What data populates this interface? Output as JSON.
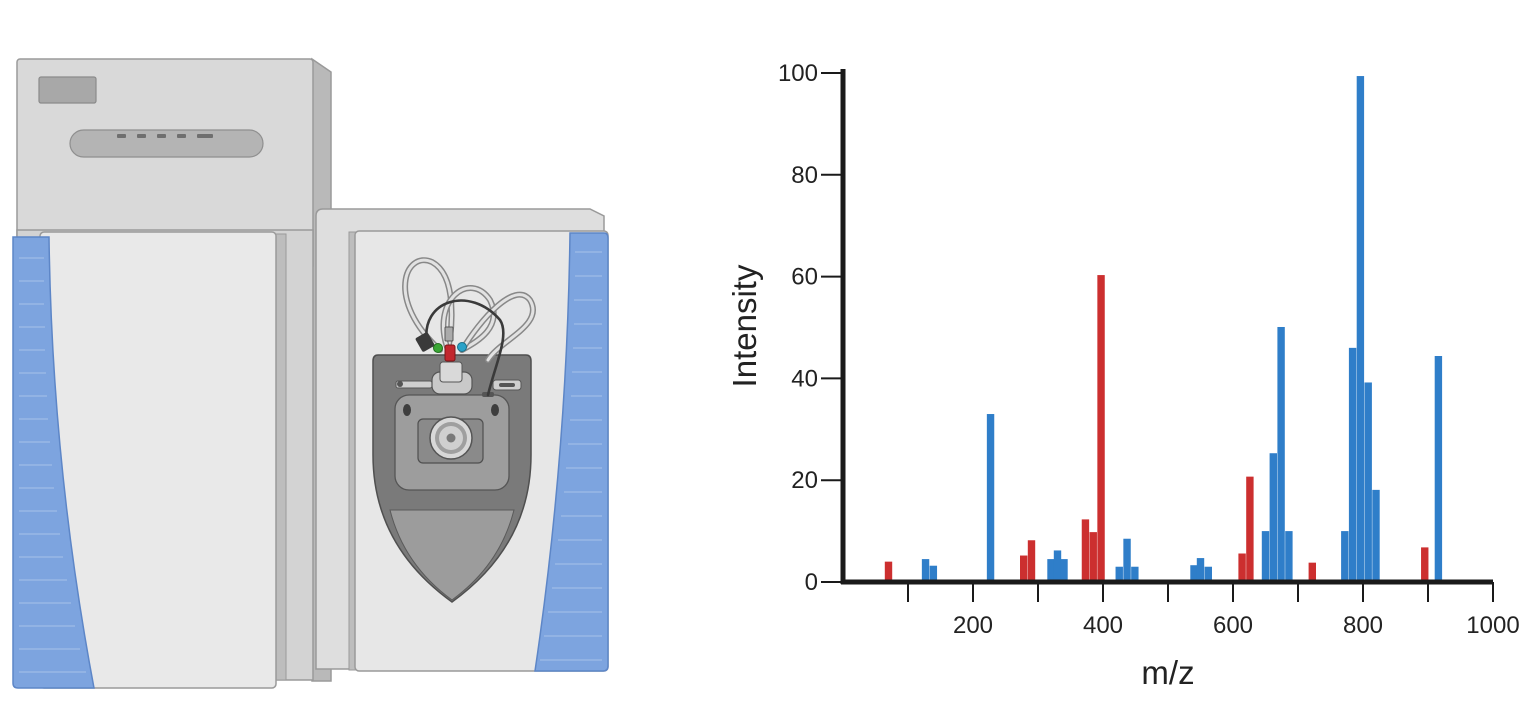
{
  "colors": {
    "blue": "#2f7ec9",
    "red": "#cc2f2f",
    "panel_blue": "#7da4df",
    "body_light": "#dcdcdc",
    "screen_gray": "#7a7a7a",
    "ring_red": "#c2272d",
    "ring_green": "#3aa635",
    "ring_cyan": "#2aa2c8"
  },
  "illustration": {
    "name": "mass-spectrometer-instrument",
    "icon": "mass-spectrometer-icon"
  },
  "chart_data": {
    "type": "bar",
    "xlabel": "m/z",
    "ylabel": "Intensity",
    "xlim": [
      0,
      1000
    ],
    "ylim": [
      0,
      100
    ],
    "x_ticks": [
      100,
      200,
      300,
      400,
      500,
      600,
      700,
      800,
      900,
      1000
    ],
    "x_tick_labels": [
      "200",
      "400",
      "600",
      "800",
      "1000"
    ],
    "x_tick_label_values": [
      200,
      400,
      600,
      800,
      1000
    ],
    "y_ticks": [
      0,
      20,
      40,
      60,
      80,
      100
    ],
    "y_tick_labels": [
      "0",
      "20",
      "40",
      "60",
      "80",
      "100"
    ],
    "grid": false,
    "series": [
      {
        "color": "#2f7ec9",
        "x": [
          127,
          139,
          227,
          320,
          330,
          340,
          425,
          437,
          449,
          540,
          550,
          562,
          650,
          662,
          674,
          686,
          772,
          784,
          796,
          808,
          820,
          916
        ],
        "values": [
          4.5,
          3.2,
          33,
          4.5,
          6.2,
          4.5,
          3,
          8.5,
          3,
          3.3,
          4.7,
          3,
          10,
          25.3,
          50.1,
          10,
          10,
          46,
          99.4,
          39.2,
          18.1,
          44.4
        ]
      },
      {
        "color": "#cc2f2f",
        "x": [
          70,
          278,
          290,
          373,
          385,
          397,
          614,
          626,
          722,
          895
        ],
        "values": [
          4,
          5.2,
          8.2,
          12.3,
          9.8,
          60.3,
          5.6,
          20.7,
          3.8,
          6.8
        ]
      }
    ]
  }
}
